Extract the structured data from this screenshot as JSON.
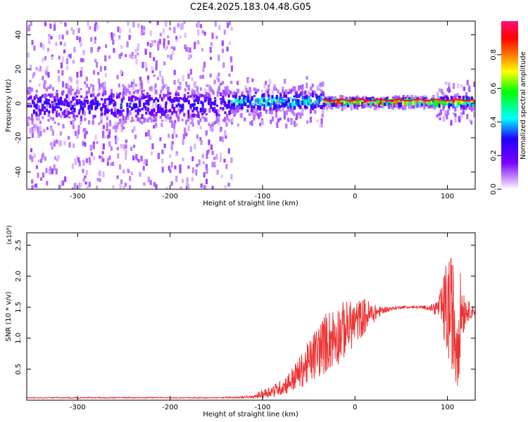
{
  "title": "C2E4.2025.183.04.48.G05",
  "chart_data": [
    {
      "type": "heatmap",
      "xlabel": "Height of straight line (km)",
      "ylabel": "Frequency (Hz)",
      "xlim": [
        -355,
        130
      ],
      "ylim": [
        -50,
        48
      ],
      "xticks": [
        -300,
        -200,
        -100,
        0,
        100
      ],
      "yticks": [
        -40,
        -20,
        0,
        20,
        40
      ],
      "colorbar": {
        "label": "Normalized spectral amplitude",
        "range": [
          0,
          1
        ],
        "ticks": [
          "0.0",
          "0.2",
          "0.4",
          "0.6",
          "0.8"
        ],
        "tick_values": [
          0,
          0.2,
          0.4,
          0.6,
          0.8
        ],
        "colors": [
          "#ffffff",
          "#cc99ff",
          "#7700ff",
          "#2200ff",
          "#00ffff",
          "#00ff00",
          "#ffff00",
          "#ff7700",
          "#ff0000",
          "#ff1177"
        ]
      },
      "segments": [
        {
          "x_from": -355,
          "x_to": -135,
          "center_freq": 0,
          "core_halfwidth": 10,
          "scatter_halfwidth": 50,
          "peak_amplitude": 0.32
        },
        {
          "x_from": -135,
          "x_to": -35,
          "center_freq": 2,
          "core_halfwidth": 6,
          "scatter_halfwidth": 14,
          "peak_amplitude": 0.5
        },
        {
          "x_from": -35,
          "x_to": 85,
          "center_freq": 2,
          "core_halfwidth": 2,
          "scatter_halfwidth": 3,
          "peak_amplitude": 0.95
        },
        {
          "x_from": 85,
          "x_to": 130,
          "center_freq": 2,
          "core_halfwidth": 3,
          "scatter_halfwidth": 12,
          "peak_amplitude": 0.9
        }
      ]
    },
    {
      "type": "line",
      "xlabel": "Height of straight line (km)",
      "ylabel": "SNR (10 * v/v)",
      "y_multiplier": "(x10⁴)",
      "xlim": [
        -355,
        130
      ],
      "ylim": [
        0,
        2.7
      ],
      "xticks": [
        -300,
        -200,
        -100,
        0,
        100
      ],
      "yticks": [
        "0.5",
        "1.0",
        "1.5",
        "2.0",
        "2.5"
      ],
      "ytick_values": [
        0.5,
        1.0,
        1.5,
        2.0,
        2.5
      ],
      "line_color": "#ee3333",
      "series": [
        {
          "x": [
            -355,
            -300,
            -250,
            -200,
            -150,
            -110,
            -100,
            -90,
            -80,
            -70,
            -60,
            -50,
            -40,
            -30,
            -20,
            -10,
            0,
            10,
            20,
            30,
            40,
            50,
            60,
            70,
            80,
            90,
            95,
            100,
            105,
            110,
            115,
            120,
            130
          ],
          "y": [
            0.04,
            0.04,
            0.04,
            0.04,
            0.04,
            0.05,
            0.1,
            0.15,
            0.2,
            0.3,
            0.45,
            0.6,
            0.8,
            0.95,
            1.05,
            1.15,
            1.25,
            1.35,
            1.4,
            1.45,
            1.48,
            1.5,
            1.5,
            1.5,
            1.49,
            1.49,
            1.48,
            1.48,
            1.4,
            1.0,
            1.48,
            1.45,
            1.43
          ],
          "noise": [
            0,
            0,
            0,
            0,
            0,
            0.02,
            0.07,
            0.1,
            0.12,
            0.18,
            0.25,
            0.35,
            0.45,
            0.5,
            0.5,
            0.45,
            0.35,
            0.3,
            0.15,
            0.06,
            0.03,
            0.02,
            0.02,
            0.02,
            0.03,
            0.15,
            0.45,
            0.9,
            0.9,
            1.1,
            0.6,
            0.2,
            0.05
          ]
        }
      ]
    }
  ]
}
